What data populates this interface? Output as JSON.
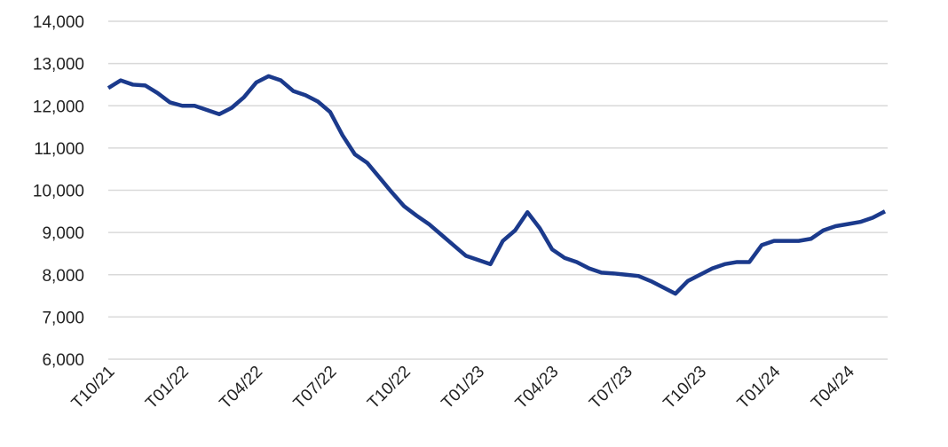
{
  "chart_data": {
    "type": "line",
    "categories": [
      "T10/21",
      null,
      null,
      null,
      null,
      null,
      "T01/22",
      null,
      null,
      null,
      null,
      null,
      "T04/22",
      null,
      null,
      null,
      null,
      null,
      "T07/22",
      null,
      null,
      null,
      null,
      null,
      "T10/22",
      null,
      null,
      null,
      null,
      null,
      "T01/23",
      null,
      null,
      null,
      null,
      null,
      "T04/23",
      null,
      null,
      null,
      null,
      null,
      "T07/23",
      null,
      null,
      null,
      null,
      null,
      "T10/23",
      null,
      null,
      null,
      null,
      null,
      "T01/24",
      null,
      null,
      null,
      null,
      null,
      "T04/24",
      null,
      null,
      null
    ],
    "series": [
      {
        "color": "#1b3a8c",
        "values": [
          12420,
          12600,
          12500,
          12480,
          12300,
          12080,
          12000,
          12000,
          11900,
          11800,
          11950,
          12200,
          12550,
          12700,
          12600,
          12350,
          12250,
          12100,
          11850,
          11300,
          10850,
          10650,
          10300,
          9950,
          9620,
          9400,
          9200,
          8950,
          8700,
          8450,
          8350,
          8250,
          8800,
          9050,
          9480,
          9100,
          8600,
          8400,
          8300,
          8150,
          8050,
          8030,
          8000,
          7970,
          7850,
          7700,
          7550,
          7850,
          8000,
          8150,
          8250,
          8300,
          8300,
          8700,
          8800,
          8800,
          8800,
          8850,
          9050,
          9150,
          9200,
          9250,
          9350,
          9500
        ]
      }
    ],
    "ylim": [
      6000,
      14000
    ],
    "yticks": [
      {
        "value": 6000,
        "label": "6,000"
      },
      {
        "value": 7000,
        "label": "7,000"
      },
      {
        "value": 8000,
        "label": "8,000"
      },
      {
        "value": 9000,
        "label": "9,000"
      },
      {
        "value": 10000,
        "label": "10,000"
      },
      {
        "value": 11000,
        "label": "11,000"
      },
      {
        "value": 12000,
        "label": "12,000"
      },
      {
        "value": 13000,
        "label": "13,000"
      },
      {
        "value": 14000,
        "label": "14,000"
      }
    ],
    "grid": true
  }
}
